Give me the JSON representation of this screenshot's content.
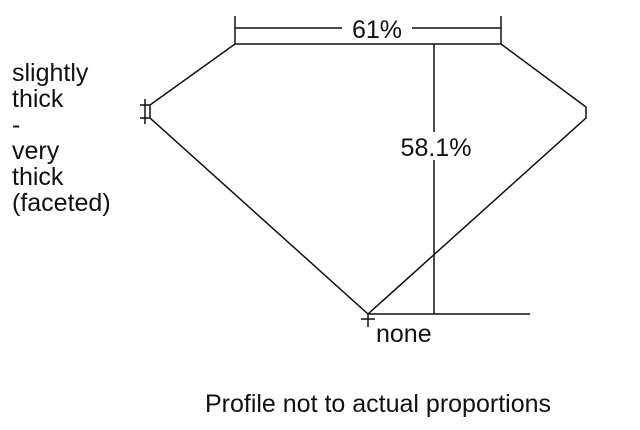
{
  "diagram": {
    "girdle_label_lines": [
      "slightly",
      "thick",
      "-",
      "very",
      "thick",
      "(faceted)"
    ],
    "table_label": "61%",
    "depth_label": "58.1%",
    "culet_label": "none",
    "caption": "Profile not to actual proportions",
    "line_color": "#111111"
  }
}
